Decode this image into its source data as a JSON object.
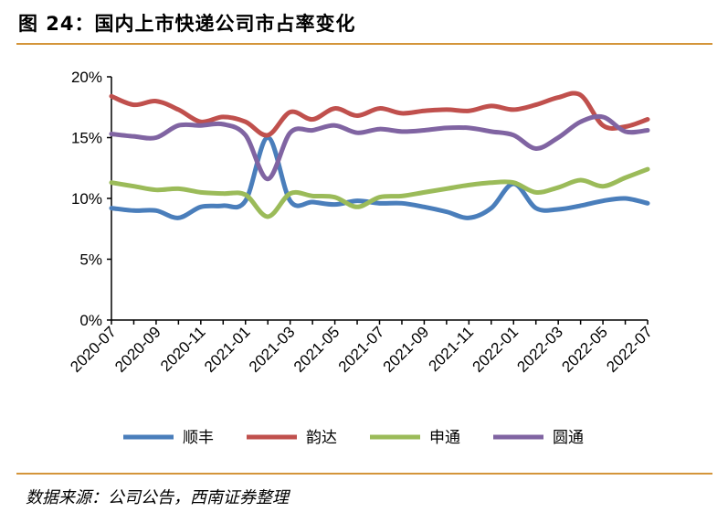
{
  "title": "图 24：国内上市快递公司市占率变化",
  "source": "数据来源：公司公告，西南证券整理",
  "chart_data": {
    "type": "line",
    "title": "",
    "ylim": [
      0,
      20
    ],
    "yticks": [
      "0%",
      "5%",
      "10%",
      "15%",
      "20%"
    ],
    "ytick_values": [
      0,
      5,
      10,
      15,
      20
    ],
    "xticks": [
      "2020-07",
      "2020-09",
      "2020-11",
      "2021-01",
      "2021-03",
      "2021-05",
      "2021-07",
      "2021-09",
      "2021-11",
      "2022-01",
      "2022-03",
      "2022-05",
      "2022-07"
    ],
    "grid": false,
    "legend_placement": "bottom",
    "x": [
      "2020-07",
      "2020-08",
      "2020-09",
      "2020-10",
      "2020-11",
      "2020-12",
      "2021-01",
      "2021-02",
      "2021-03",
      "2021-04",
      "2021-05",
      "2021-06",
      "2021-07",
      "2021-08",
      "2021-09",
      "2021-10",
      "2021-11",
      "2021-12",
      "2022-01",
      "2022-02",
      "2022-03",
      "2022-04",
      "2022-05",
      "2022-06",
      "2022-07"
    ],
    "series": [
      {
        "name": "顺丰",
        "color": "#4a7ebb",
        "values": [
          9.2,
          9.0,
          9.0,
          8.4,
          9.3,
          9.4,
          9.8,
          15.0,
          9.8,
          9.7,
          9.5,
          9.8,
          9.6,
          9.6,
          9.3,
          8.9,
          8.4,
          9.2,
          11.2,
          9.2,
          9.1,
          9.4,
          9.8,
          10.0,
          9.6
        ]
      },
      {
        "name": "韵达",
        "color": "#c0504d",
        "values": [
          18.4,
          17.7,
          18.0,
          17.3,
          16.3,
          16.7,
          16.3,
          15.2,
          17.1,
          16.5,
          17.4,
          16.8,
          17.4,
          17.0,
          17.2,
          17.3,
          17.2,
          17.6,
          17.3,
          17.7,
          18.3,
          18.5,
          16.0,
          15.9,
          16.5
        ]
      },
      {
        "name": "申通",
        "color": "#9bbb59",
        "values": [
          11.3,
          11.0,
          10.7,
          10.8,
          10.5,
          10.4,
          10.3,
          8.5,
          10.4,
          10.2,
          10.1,
          9.3,
          10.1,
          10.2,
          10.5,
          10.8,
          11.1,
          11.3,
          11.3,
          10.5,
          10.9,
          11.5,
          11.0,
          11.7,
          12.4
        ]
      },
      {
        "name": "圆通",
        "color": "#8064a2",
        "values": [
          15.3,
          15.1,
          15.0,
          16.0,
          16.0,
          16.1,
          15.2,
          11.6,
          15.4,
          15.6,
          16.0,
          15.4,
          15.7,
          15.5,
          15.6,
          15.8,
          15.8,
          15.5,
          15.2,
          14.1,
          15.0,
          16.3,
          16.7,
          15.5,
          15.6
        ]
      }
    ]
  }
}
